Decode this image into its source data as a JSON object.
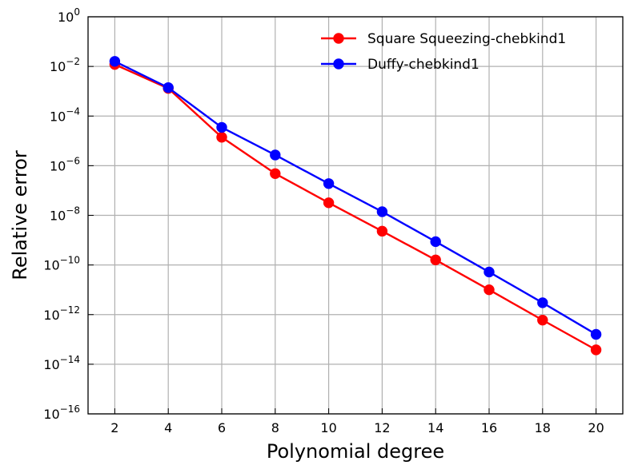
{
  "chart_data": {
    "type": "line",
    "title": "",
    "xlabel": "Polynomial degree",
    "ylabel": "Relative error",
    "x": [
      2,
      4,
      6,
      8,
      10,
      12,
      14,
      16,
      18,
      20
    ],
    "xticks": [
      2,
      4,
      6,
      8,
      10,
      12,
      14,
      16,
      18,
      20
    ],
    "xlim": [
      1,
      21
    ],
    "yscale": "log",
    "ylim": [
      1e-16,
      1
    ],
    "ytick_labels": [
      {
        "base": "10",
        "exp": "0"
      },
      {
        "base": "10",
        "exp": "−2"
      },
      {
        "base": "10",
        "exp": "−4"
      },
      {
        "base": "10",
        "exp": "−6"
      },
      {
        "base": "10",
        "exp": "−8"
      },
      {
        "base": "10",
        "exp": "−10"
      },
      {
        "base": "10",
        "exp": "−12"
      },
      {
        "base": "10",
        "exp": "−14"
      },
      {
        "base": "10",
        "exp": "−16"
      }
    ],
    "grid": true,
    "legend_position": "top-right",
    "series": [
      {
        "name": "Square Squeezing-chebkind1",
        "color": "#ff0000",
        "values": [
          0.012,
          0.0013,
          1.4e-05,
          4.8e-07,
          3.2e-08,
          2.3e-09,
          1.6e-10,
          1e-11,
          6e-13,
          3.8e-14
        ]
      },
      {
        "name": "Duffy-chebkind1",
        "color": "#0000ff",
        "values": [
          0.016,
          0.0014,
          3.5e-05,
          2.7e-06,
          1.9e-07,
          1.4e-08,
          8.7e-10,
          5.2e-11,
          3e-12,
          1.6e-13
        ]
      }
    ]
  }
}
